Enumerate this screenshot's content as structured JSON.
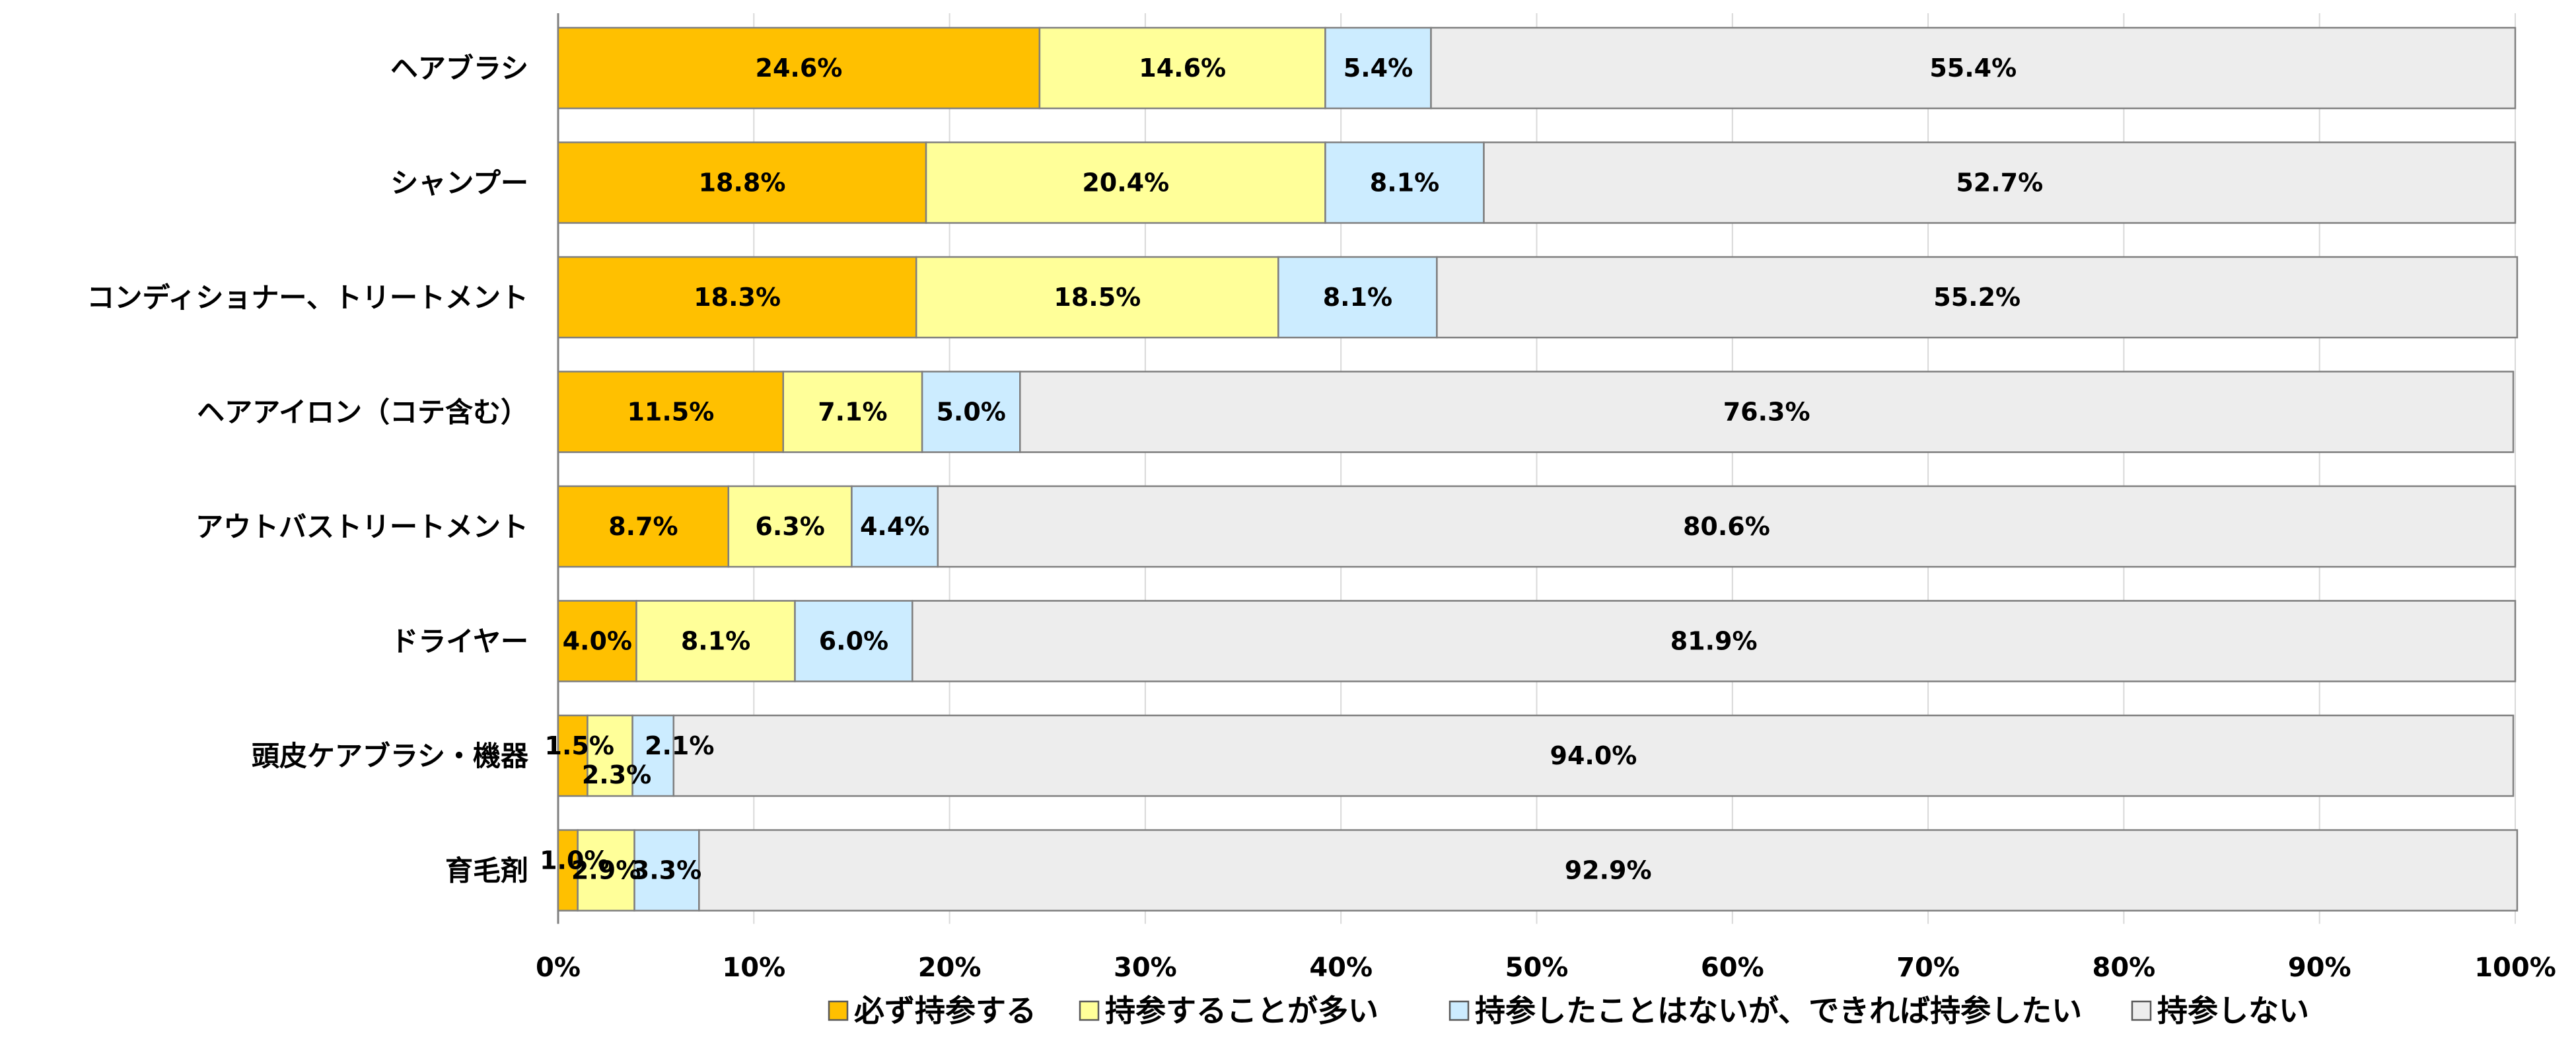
{
  "chart_data": {
    "type": "bar",
    "orientation": "horizontal",
    "stacked": true,
    "title": "",
    "xlabel": "",
    "ylabel": "",
    "xlim": [
      0,
      100
    ],
    "x_ticks": [
      "0%",
      "10%",
      "20%",
      "30%",
      "40%",
      "50%",
      "60%",
      "70%",
      "80%",
      "90%",
      "100%"
    ],
    "grid": "vertical",
    "legend_position": "bottom",
    "categories": [
      "ヘアブラシ",
      "シャンプー",
      "コンディショナー、トリートメント",
      "ヘアアイロン（コテ含む）",
      "アウトバストリートメント",
      "ドライヤー",
      "頭皮ケアブラシ・機器",
      "育毛剤"
    ],
    "series": [
      {
        "name": "必ず持参する",
        "color": "#FFC000",
        "values": [
          24.6,
          18.8,
          18.3,
          11.5,
          8.7,
          4.0,
          1.5,
          1.0
        ],
        "labels": [
          "24.6%",
          "18.8%",
          "18.3%",
          "11.5%",
          "8.7%",
          "4.0%",
          "1.5%",
          "1.0%"
        ]
      },
      {
        "name": "持参することが多い",
        "color": "#FFFF99",
        "values": [
          14.6,
          20.4,
          18.5,
          7.1,
          6.3,
          8.1,
          2.3,
          2.9
        ],
        "labels": [
          "14.6%",
          "20.4%",
          "18.5%",
          "7.1%",
          "6.3%",
          "8.1%",
          "2.3%",
          "2.9%"
        ]
      },
      {
        "name": "持参したことはないが、できれば持参したい",
        "color": "#CCECFF",
        "values": [
          5.4,
          8.1,
          8.1,
          5.0,
          4.4,
          6.0,
          2.1,
          3.3
        ],
        "labels": [
          "5.4%",
          "8.1%",
          "8.1%",
          "5.0%",
          "4.4%",
          "6.0%",
          "2.1%",
          "3.3%"
        ]
      },
      {
        "name": "持参しない",
        "color": "#EDEDED",
        "values": [
          55.4,
          52.7,
          55.2,
          76.3,
          80.6,
          81.9,
          94.0,
          92.9
        ],
        "labels": [
          "55.4%",
          "52.7%",
          "55.2%",
          "76.3%",
          "80.6%",
          "81.9%",
          "94.0%",
          "92.9%"
        ]
      }
    ]
  }
}
